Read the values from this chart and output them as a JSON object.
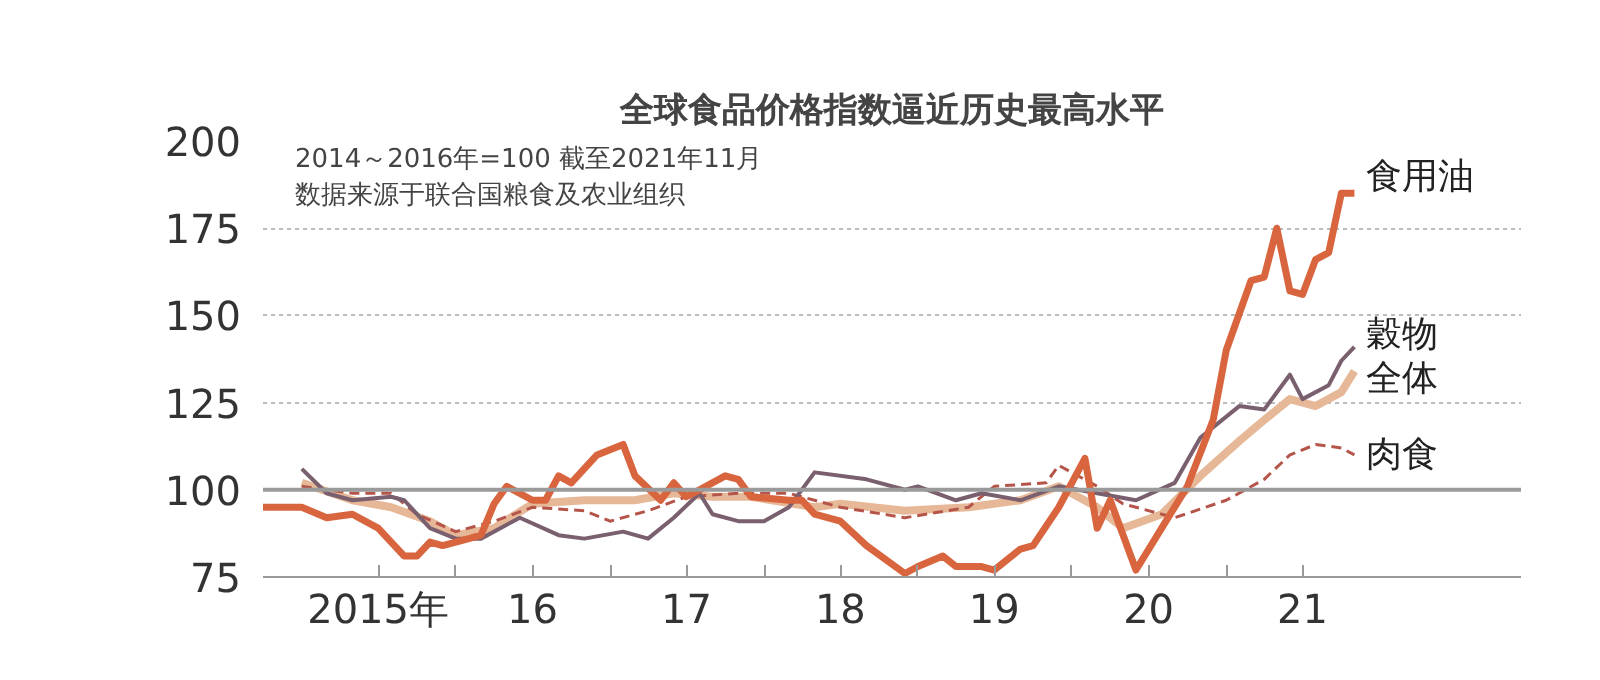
{
  "chart_data": {
    "type": "line",
    "title": "全球食品价格指数逼近历史最高水平",
    "annotations": [
      "2014～2016年=100 截至2021年11月",
      "数据来源于联合国粮食及农业组织"
    ],
    "xlim": [
      "2014-10",
      "2022-12"
    ],
    "ylim": [
      75,
      200
    ],
    "xticks": [
      {
        "value": "2015-07",
        "label": "2015年"
      },
      {
        "value": "2016-01",
        "label": null
      },
      {
        "value": "2016-07",
        "label": "16"
      },
      {
        "value": "2017-01",
        "label": null
      },
      {
        "value": "2017-07",
        "label": "17"
      },
      {
        "value": "2018-01",
        "label": null
      },
      {
        "value": "2018-07",
        "label": "18"
      },
      {
        "value": "2019-01",
        "label": null
      },
      {
        "value": "2019-07",
        "label": "19"
      },
      {
        "value": "2020-01",
        "label": null
      },
      {
        "value": "2020-07",
        "label": "20"
      },
      {
        "value": "2021-01",
        "label": null
      },
      {
        "value": "2021-07",
        "label": "21"
      }
    ],
    "yticks": [
      75,
      100,
      125,
      150,
      175,
      200
    ],
    "grid": "y",
    "legend": false,
    "marker": "none",
    "ref_lines": [
      {
        "axis": "y",
        "value": 100,
        "label": null,
        "color": "#9a9a9a"
      }
    ],
    "series": [
      {
        "name": "食用油",
        "color": "#d9653f",
        "line_style": "solid",
        "x": [
          "2014-10",
          "2015-01",
          "2015-03",
          "2015-05",
          "2015-07",
          "2015-09",
          "2015-10",
          "2015-11",
          "2015-12",
          "2016-02",
          "2016-03",
          "2016-04",
          "2016-05",
          "2016-07",
          "2016-08",
          "2016-09",
          "2016-10",
          "2016-12",
          "2017-02",
          "2017-03",
          "2017-05",
          "2017-06",
          "2017-07",
          "2017-08",
          "2017-10",
          "2017-11",
          "2017-12",
          "2018-03",
          "2018-04",
          "2018-05",
          "2018-07",
          "2018-09",
          "2018-12",
          "2019-01",
          "2019-03",
          "2019-04",
          "2019-06",
          "2019-07",
          "2019-09",
          "2019-10",
          "2019-12",
          "2020-02",
          "2020-03",
          "2020-04",
          "2020-06",
          "2020-08",
          "2020-10",
          "2020-12",
          "2021-01",
          "2021-03",
          "2021-04",
          "2021-05",
          "2021-06",
          "2021-07",
          "2021-08",
          "2021-09",
          "2021-10",
          "2021-11"
        ],
        "values": [
          95,
          95,
          92,
          93,
          89,
          81,
          81,
          85,
          84,
          86,
          87,
          96,
          101,
          97,
          97,
          104,
          102,
          110,
          113,
          104,
          97,
          102,
          98,
          100,
          104,
          103,
          98,
          97,
          97,
          93,
          91,
          84,
          76,
          78,
          81,
          78,
          78,
          77,
          83,
          84,
          95,
          109,
          89,
          97,
          77,
          89,
          101,
          120,
          140,
          160,
          161,
          175,
          157,
          156,
          166,
          168,
          185,
          185
        ]
      },
      {
        "name": "穀物",
        "color": "#7a5f6e",
        "line_style": "solid",
        "x": [
          "2015-01",
          "2015-03",
          "2015-05",
          "2015-08",
          "2015-09",
          "2015-11",
          "2016-01",
          "2016-03",
          "2016-06",
          "2016-09",
          "2016-11",
          "2017-02",
          "2017-04",
          "2017-06",
          "2017-08",
          "2017-09",
          "2017-11",
          "2018-01",
          "2018-03",
          "2018-05",
          "2018-09",
          "2018-12",
          "2019-01",
          "2019-04",
          "2019-06",
          "2019-09",
          "2019-12",
          "2020-03",
          "2020-06",
          "2020-09",
          "2020-11",
          "2021-02",
          "2021-04",
          "2021-06",
          "2021-07",
          "2021-09",
          "2021-10",
          "2021-11"
        ],
        "values": [
          106,
          99,
          97,
          98,
          97,
          89,
          86,
          86,
          92,
          87,
          86,
          88,
          86,
          92,
          99,
          93,
          91,
          91,
          95,
          105,
          103,
          100,
          101,
          97,
          99,
          97,
          101,
          99,
          97,
          102,
          115,
          124,
          123,
          133,
          126,
          130,
          137,
          141
        ]
      },
      {
        "name": "全体",
        "color": "#e6b897",
        "line_style": "solid",
        "x": [
          "2015-01",
          "2015-05",
          "2015-08",
          "2015-11",
          "2016-01",
          "2016-04",
          "2016-07",
          "2016-11",
          "2017-03",
          "2017-06",
          "2017-09",
          "2017-12",
          "2018-05",
          "2018-07",
          "2018-12",
          "2019-05",
          "2019-09",
          "2019-12",
          "2020-03",
          "2020-05",
          "2020-08",
          "2020-11",
          "2021-02",
          "2021-04",
          "2021-06",
          "2021-08",
          "2021-10",
          "2021-11"
        ],
        "values": [
          102,
          97,
          95,
          91,
          87,
          89,
          96,
          97,
          97,
          99,
          98,
          98,
          95,
          96,
          94,
          95,
          97,
          101,
          95,
          89,
          93,
          104,
          114,
          120,
          126,
          124,
          128,
          134
        ]
      },
      {
        "name": "肉食",
        "color": "#b5554a",
        "line_style": "dashed",
        "x": [
          "2015-01",
          "2015-05",
          "2015-08",
          "2015-10",
          "2016-01",
          "2016-04",
          "2016-07",
          "2016-11",
          "2017-01",
          "2017-04",
          "2017-07",
          "2017-11",
          "2018-03",
          "2018-05",
          "2018-07",
          "2018-12",
          "2019-05",
          "2019-07",
          "2019-11",
          "2019-12",
          "2020-03",
          "2020-05",
          "2020-09",
          "2021-01",
          "2021-04",
          "2021-06",
          "2021-08",
          "2021-10",
          "2021-11"
        ],
        "values": [
          101,
          99,
          99,
          93,
          88,
          91,
          95,
          94,
          91,
          94,
          98,
          99,
          99,
          97,
          95,
          92,
          95,
          101,
          102,
          107,
          101,
          96,
          92,
          97,
          103,
          110,
          113,
          112,
          110
        ]
      }
    ]
  }
}
